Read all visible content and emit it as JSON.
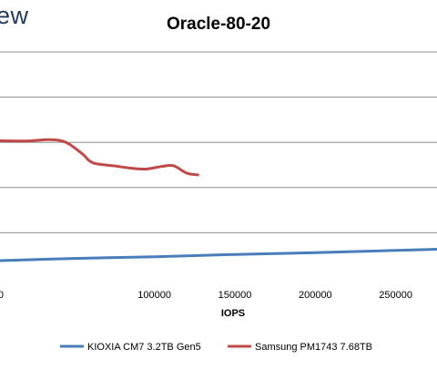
{
  "brand": {
    "watermark_text": "ew"
  },
  "chart_data": {
    "type": "line",
    "title": "Oracle-80-20",
    "xlabel": "IOPS",
    "ylabel": "",
    "xlim": [
      0,
      300000
    ],
    "x_ticks": [
      0,
      50000,
      100000,
      150000,
      200000,
      250000,
      300000
    ],
    "x_tick_labels": [
      "",
      "",
      "100000",
      "150000",
      "200000",
      "250000",
      ""
    ],
    "y_gridlines": 5,
    "grid": true,
    "legend_position": "bottom",
    "series": [
      {
        "name": "KIOXIA CM7 3.2TB Gen5",
        "color": "#4a7ebb",
        "x": [
          0,
          50000,
          100000,
          150000,
          200000,
          250000,
          300000
        ],
        "y": [
          0.38,
          0.43,
          0.47,
          0.52,
          0.56,
          0.61,
          0.66
        ]
      },
      {
        "name": "Samsung PM1743 7.68TB",
        "color": "#be4b48",
        "x": [
          0,
          20000,
          35000,
          45000,
          55000,
          60000,
          65000,
          75000,
          85000,
          95000,
          105000,
          112000,
          120000,
          127000
        ],
        "y": [
          3.04,
          3.03,
          3.06,
          3.0,
          2.75,
          2.58,
          2.52,
          2.48,
          2.43,
          2.41,
          2.47,
          2.48,
          2.32,
          2.28
        ]
      }
    ]
  }
}
